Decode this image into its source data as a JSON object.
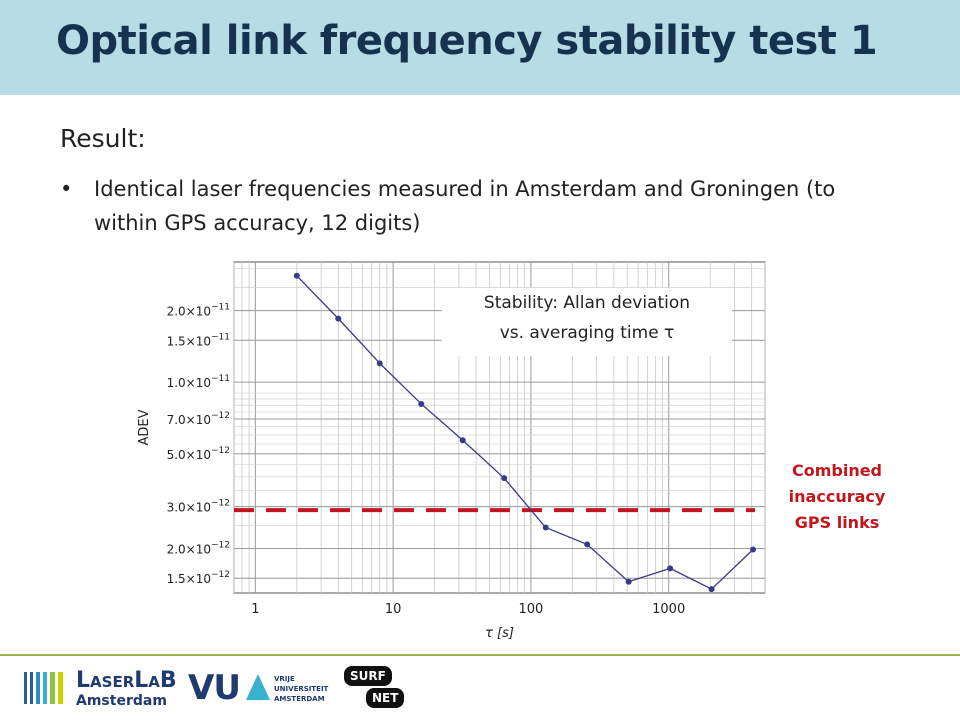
{
  "slide": {
    "title": "Optical link frequency stability test 1",
    "result_label": "Result:",
    "bullet": "Identical laser frequencies measured in Amsterdam and Groningen (to within GPS accuracy, 12 digits)",
    "callout": [
      "Stability: Allan deviation",
      "vs. averaging time τ"
    ],
    "red_label": [
      "Combined",
      "inaccuracy",
      "GPS links"
    ]
  },
  "chart_data": {
    "type": "line",
    "xlabel": "τ [s]",
    "ylabel": "ADEV",
    "x_scale": "log",
    "y_scale": "log",
    "xlim": [
      0.7,
      5000
    ],
    "ylim": [
      1.3e-12,
      3.2e-11
    ],
    "grid": true,
    "x_ticks": [
      {
        "value": 1,
        "label": "1"
      },
      {
        "value": 10,
        "label": "10"
      },
      {
        "value": 100,
        "label": "100"
      },
      {
        "value": 1000,
        "label": "1000"
      }
    ],
    "y_ticks": [
      {
        "value": 1.5e-12,
        "mantissa": "1.5",
        "exp": "−12"
      },
      {
        "value": 2e-12,
        "mantissa": "2.0",
        "exp": "−12"
      },
      {
        "value": 3e-12,
        "mantissa": "3.0",
        "exp": "−12"
      },
      {
        "value": 5e-12,
        "mantissa": "5.0",
        "exp": "−12"
      },
      {
        "value": 7e-12,
        "mantissa": "7.0",
        "exp": "−12"
      },
      {
        "value": 1e-11,
        "mantissa": "1.0",
        "exp": "−11"
      },
      {
        "value": 1.5e-11,
        "mantissa": "1.5",
        "exp": "−11"
      },
      {
        "value": 2e-11,
        "mantissa": "2.0",
        "exp": "−11"
      }
    ],
    "series": [
      {
        "x": [
          2,
          4,
          8,
          16,
          32,
          64,
          128,
          256,
          512,
          1024,
          2048,
          4096
        ],
        "y": [
          2.8e-11,
          1.85e-11,
          1.2e-11,
          8.1e-12,
          5.7e-12,
          3.95e-12,
          2.45e-12,
          2.08e-12,
          1.45e-12,
          1.65e-12,
          1.35e-12,
          1.98e-12
        ],
        "color": "#3a3a8c"
      }
    ],
    "reference_line": {
      "y": 2.9e-12,
      "color": "#c0161c"
    }
  },
  "footer": {
    "logo1": [
      "L",
      "ASER",
      "L",
      "A",
      "B"
    ],
    "logo1_sub": "Amsterdam",
    "logo2": "VU",
    "logo2_lines": [
      "VRIJE",
      "UNIVERSITEIT",
      "AMSTERDAM"
    ],
    "logo3_a": "SURF",
    "logo3_b": "NET",
    "accent": "#9ab44a"
  }
}
